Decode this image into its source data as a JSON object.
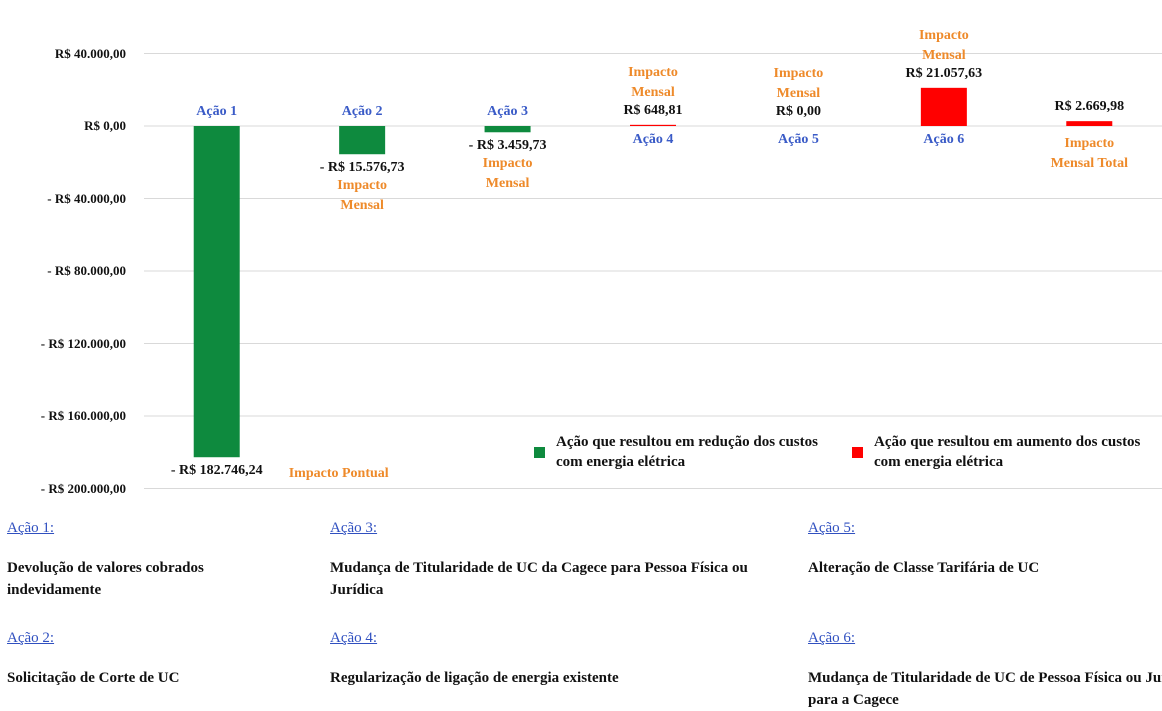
{
  "chart_data": {
    "type": "bar",
    "categories": [
      "Ação 1",
      "Ação 2",
      "Ação 3",
      "Ação 4",
      "Ação 5",
      "Ação 6",
      null
    ],
    "values": [
      -182746.24,
      -15576.73,
      -3459.73,
      648.81,
      0,
      21057.63,
      2669.98
    ],
    "value_labels": [
      "- R$ 182.746,24",
      "- R$ 15.576,73",
      "- R$ 3.459,73",
      "R$ 648,81",
      "R$ 0,00",
      "R$ 21.057,63",
      "R$ 2.669,98"
    ],
    "annotations": [
      "Impacto Pontual",
      "Impacto Mensal",
      "Impacto Mensal",
      "Impacto Mensal",
      "Impacto Mensal",
      "Impacto Mensal",
      "Impacto Mensal Total"
    ],
    "colors": [
      "#0e8a3e",
      "#0e8a3e",
      "#0e8a3e",
      "#ff0000",
      "#ff0000",
      "#ff0000",
      "#ff0000"
    ],
    "ylim": [
      -200000,
      40000
    ],
    "yticks": [
      {
        "value": 40000,
        "label": "R$ 40.000,00"
      },
      {
        "value": 0,
        "label": "R$ 0,00"
      },
      {
        "value": -40000,
        "label": "- R$ 40.000,00"
      },
      {
        "value": -80000,
        "label": "- R$ 80.000,00"
      },
      {
        "value": -120000,
        "label": "- R$ 120.000,00"
      },
      {
        "value": -160000,
        "label": "- R$ 160.000,00"
      },
      {
        "value": -200000,
        "label": "- R$ 200.000,00"
      }
    ],
    "grid": true,
    "legend": [
      {
        "name": "Ação que resultou em redução dos custos com energia elétrica",
        "color": "#0e8a3e"
      },
      {
        "name": "Ação que resultou em aumento dos custos com energia elétrica",
        "color": "#ff0000"
      }
    ]
  },
  "descriptions": [
    {
      "label": "Ação 1:",
      "text": "Devolução de valores cobrados indevidamente"
    },
    {
      "label": "Ação 2:",
      "text": "Solicitação de Corte de UC"
    },
    {
      "label": "Ação 3:",
      "text": "Mudança de Titularidade de UC da Cagece para Pessoa Física ou Jurídica"
    },
    {
      "label": "Ação 4:",
      "text": "Regularização de ligação de energia existente"
    },
    {
      "label": "Ação 5:",
      "text": "Alteração de Classe Tarifária de UC"
    },
    {
      "label": "Ação 6:",
      "text": "Mudança de Titularidade de UC de Pessoa Física ou Jurídica para a Cagece"
    }
  ]
}
